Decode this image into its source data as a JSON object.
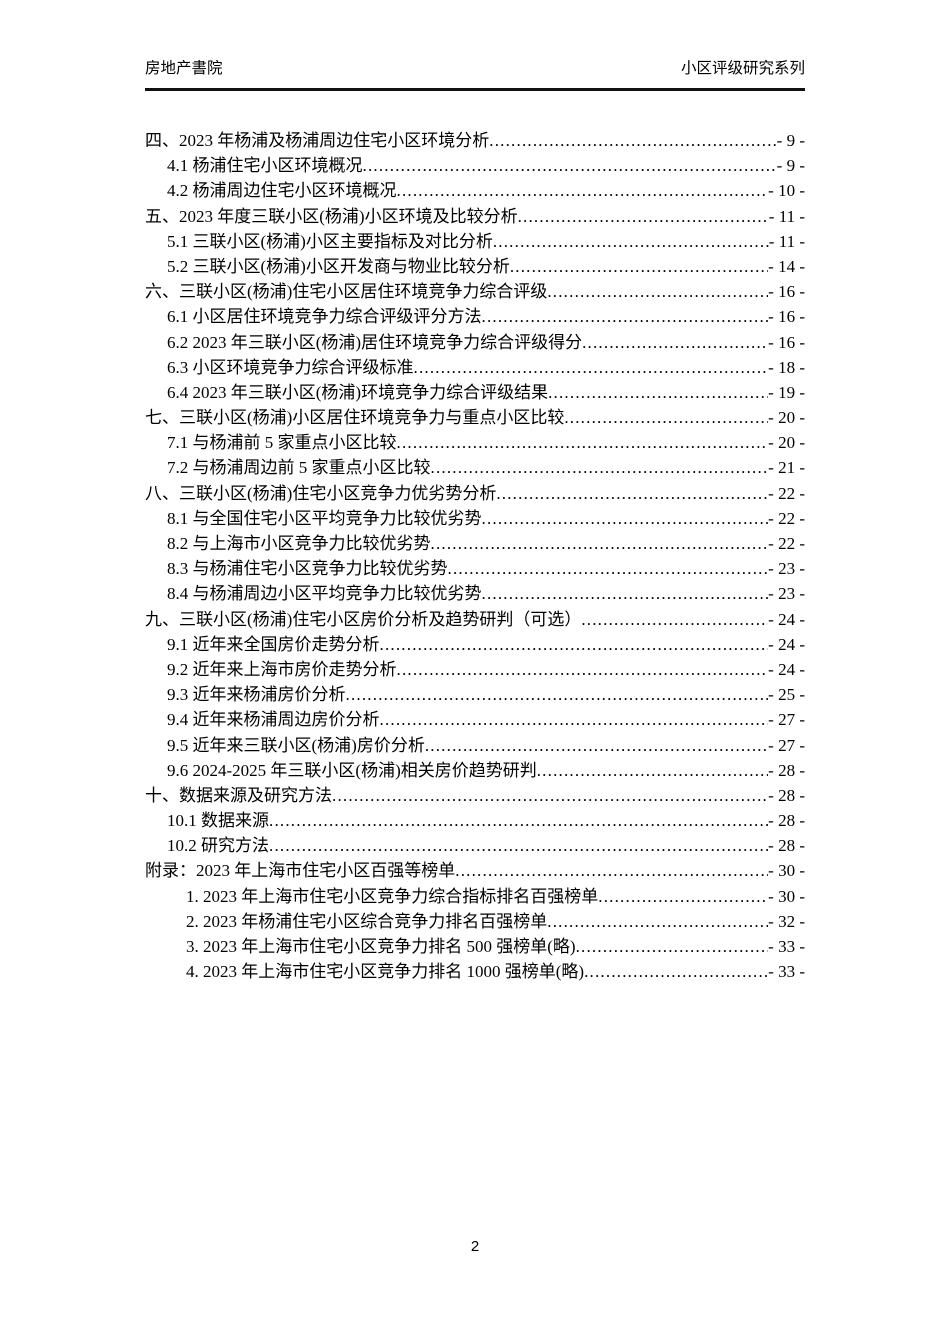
{
  "header": {
    "left": "房地产書院",
    "right": "小区评级研究系列"
  },
  "toc": {
    "entries": [
      {
        "level": 1,
        "label": "四、2023 年杨浦及杨浦周边住宅小区环境分析",
        "page": "- 9 -"
      },
      {
        "level": 2,
        "label": "4.1 杨浦住宅小区环境概况",
        "page": "- 9 -"
      },
      {
        "level": 2,
        "label": "4.2 杨浦周边住宅小区环境概况",
        "page": "- 10 -"
      },
      {
        "level": 1,
        "label": "五、2023 年度三联小区(杨浦)小区环境及比较分析",
        "page": "- 11 -"
      },
      {
        "level": 2,
        "label": "5.1 三联小区(杨浦)小区主要指标及对比分析",
        "page": "- 11 -"
      },
      {
        "level": 2,
        "label": "5.2 三联小区(杨浦)小区开发商与物业比较分析",
        "page": "- 14 -"
      },
      {
        "level": 1,
        "label": "六、三联小区(杨浦)住宅小区居住环境竞争力综合评级",
        "page": "- 16 -"
      },
      {
        "level": 2,
        "label": "6.1 小区居住环境竞争力综合评级评分方法",
        "page": "- 16 -"
      },
      {
        "level": 2,
        "label": "6.2 2023 年三联小区(杨浦)居住环境竞争力综合评级得分",
        "page": "- 16 -"
      },
      {
        "level": 2,
        "label": "6.3 小区环境竞争力综合评级标准",
        "page": "- 18 -"
      },
      {
        "level": 2,
        "label": "6.4 2023 年三联小区(杨浦)环境竞争力综合评级结果",
        "page": "- 19 -"
      },
      {
        "level": 1,
        "label": "七、三联小区(杨浦)小区居住环境竞争力与重点小区比较",
        "page": "- 20 -"
      },
      {
        "level": 2,
        "label": "7.1 与杨浦前 5 家重点小区比较",
        "page": "- 20 -"
      },
      {
        "level": 2,
        "label": "7.2 与杨浦周边前 5 家重点小区比较",
        "page": "- 21 -"
      },
      {
        "level": 1,
        "label": "八、三联小区(杨浦)住宅小区竞争力优劣势分析",
        "page": "- 22 -"
      },
      {
        "level": 2,
        "label": "8.1 与全国住宅小区平均竞争力比较优劣势",
        "page": "- 22 -"
      },
      {
        "level": 2,
        "label": "8.2 与上海市小区竞争力比较优劣势",
        "page": "- 22 -"
      },
      {
        "level": 2,
        "label": "8.3 与杨浦住宅小区竞争力比较优劣势",
        "page": "- 23 -"
      },
      {
        "level": 2,
        "label": "8.4 与杨浦周边小区平均竞争力比较优劣势",
        "page": "- 23 -"
      },
      {
        "level": 1,
        "label": "九、三联小区(杨浦)住宅小区房价分析及趋势研判（可选）",
        "page": "- 24 -"
      },
      {
        "level": 2,
        "label": "9.1 近年来全国房价走势分析",
        "page": "- 24 -"
      },
      {
        "level": 2,
        "label": "9.2 近年来上海市房价走势分析",
        "page": "- 24 -"
      },
      {
        "level": 2,
        "label": "9.3 近年来杨浦房价分析",
        "page": "- 25 -"
      },
      {
        "level": 2,
        "label": "9.4 近年来杨浦周边房价分析",
        "page": "- 27 -"
      },
      {
        "level": 2,
        "label": "9.5 近年来三联小区(杨浦)房价分析",
        "page": "- 27 -"
      },
      {
        "level": 2,
        "label": "9.6 2024-2025 年三联小区(杨浦)相关房价趋势研判",
        "page": "- 28 -"
      },
      {
        "level": 1,
        "label": "十、数据来源及研究方法",
        "page": "- 28 -"
      },
      {
        "level": 2,
        "label": "10.1 数据来源",
        "page": "- 28 -"
      },
      {
        "level": 2,
        "label": "10.2 研究方法",
        "page": "- 28 -"
      },
      {
        "level": 1,
        "label": "附录：2023 年上海市住宅小区百强等榜单",
        "page": "- 30 -"
      },
      {
        "level": 3,
        "label": "1. 2023 年上海市住宅小区竞争力综合指标排名百强榜单",
        "page": "- 30 -"
      },
      {
        "level": 3,
        "label": "2. 2023 年杨浦住宅小区综合竞争力排名百强榜单",
        "page": "- 32 -"
      },
      {
        "level": 3,
        "label": "3. 2023 年上海市住宅小区竞争力排名 500 强榜单(略)",
        "page": "- 33 -"
      },
      {
        "level": 3,
        "label": "4. 2023 年上海市住宅小区竞争力排名 1000 强榜单(略)",
        "page": "- 33 -"
      }
    ]
  },
  "footer": {
    "page_number": "2"
  }
}
